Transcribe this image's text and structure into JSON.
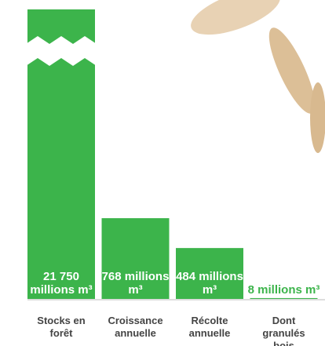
{
  "chart_data": {
    "type": "bar",
    "categories": [
      "Stocks en forêt",
      "Croissance annuelle",
      "Récolte annuelle",
      "Dont granulés bois"
    ],
    "values": [
      21750,
      768,
      484,
      8
    ],
    "value_labels": [
      "21 750 millions m³",
      "768 millions m³",
      "484 millions m³",
      "8 millions m³"
    ],
    "color": "#3cb44b"
  }
}
